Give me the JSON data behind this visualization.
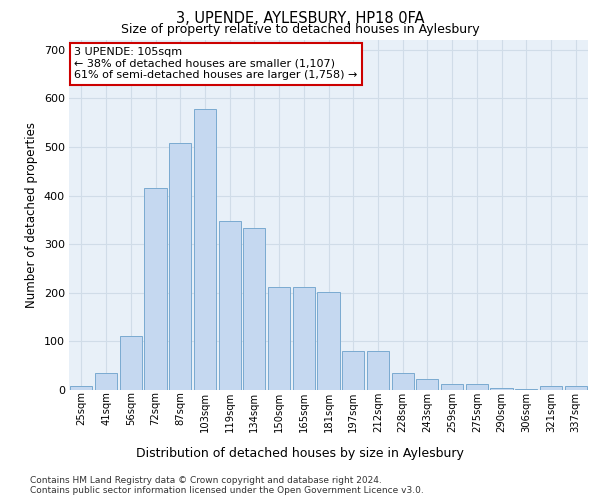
{
  "title": "3, UPENDE, AYLESBURY, HP18 0FA",
  "subtitle": "Size of property relative to detached houses in Aylesbury",
  "xlabel": "Distribution of detached houses by size in Aylesbury",
  "ylabel": "Number of detached properties",
  "categories": [
    "25sqm",
    "41sqm",
    "56sqm",
    "72sqm",
    "87sqm",
    "103sqm",
    "119sqm",
    "134sqm",
    "150sqm",
    "165sqm",
    "181sqm",
    "197sqm",
    "212sqm",
    "228sqm",
    "243sqm",
    "259sqm",
    "275sqm",
    "290sqm",
    "306sqm",
    "321sqm",
    "337sqm"
  ],
  "values": [
    8,
    35,
    112,
    415,
    508,
    578,
    348,
    333,
    212,
    212,
    202,
    80,
    80,
    35,
    22,
    13,
    13,
    5,
    2,
    8,
    8
  ],
  "bar_color": "#c5d8f0",
  "bar_edge_color": "#7aaad0",
  "annotation_text": "3 UPENDE: 105sqm\n← 38% of detached houses are smaller (1,107)\n61% of semi-detached houses are larger (1,758) →",
  "annotation_box_color": "#ffffff",
  "annotation_box_edge_color": "#cc0000",
  "grid_color": "#d0dce8",
  "plot_bg_color": "#e8f0f8",
  "ylim": [
    0,
    720
  ],
  "yticks": [
    0,
    100,
    200,
    300,
    400,
    500,
    600,
    700
  ],
  "footnote1": "Contains HM Land Registry data © Crown copyright and database right 2024.",
  "footnote2": "Contains public sector information licensed under the Open Government Licence v3.0."
}
